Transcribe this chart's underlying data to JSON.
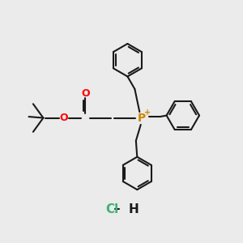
{
  "bg_color": "#ebebeb",
  "figsize": [
    3.0,
    3.0
  ],
  "dpi": 100,
  "bond_color": "#1a1a1a",
  "bond_width": 1.5,
  "o_color": "#ff0000",
  "p_color": "#cc8800",
  "cl_color": "#3cb371",
  "font_size_atom": 9,
  "font_size_hcl": 11,
  "xlim": [
    0,
    10
  ],
  "ylim": [
    0,
    10
  ]
}
